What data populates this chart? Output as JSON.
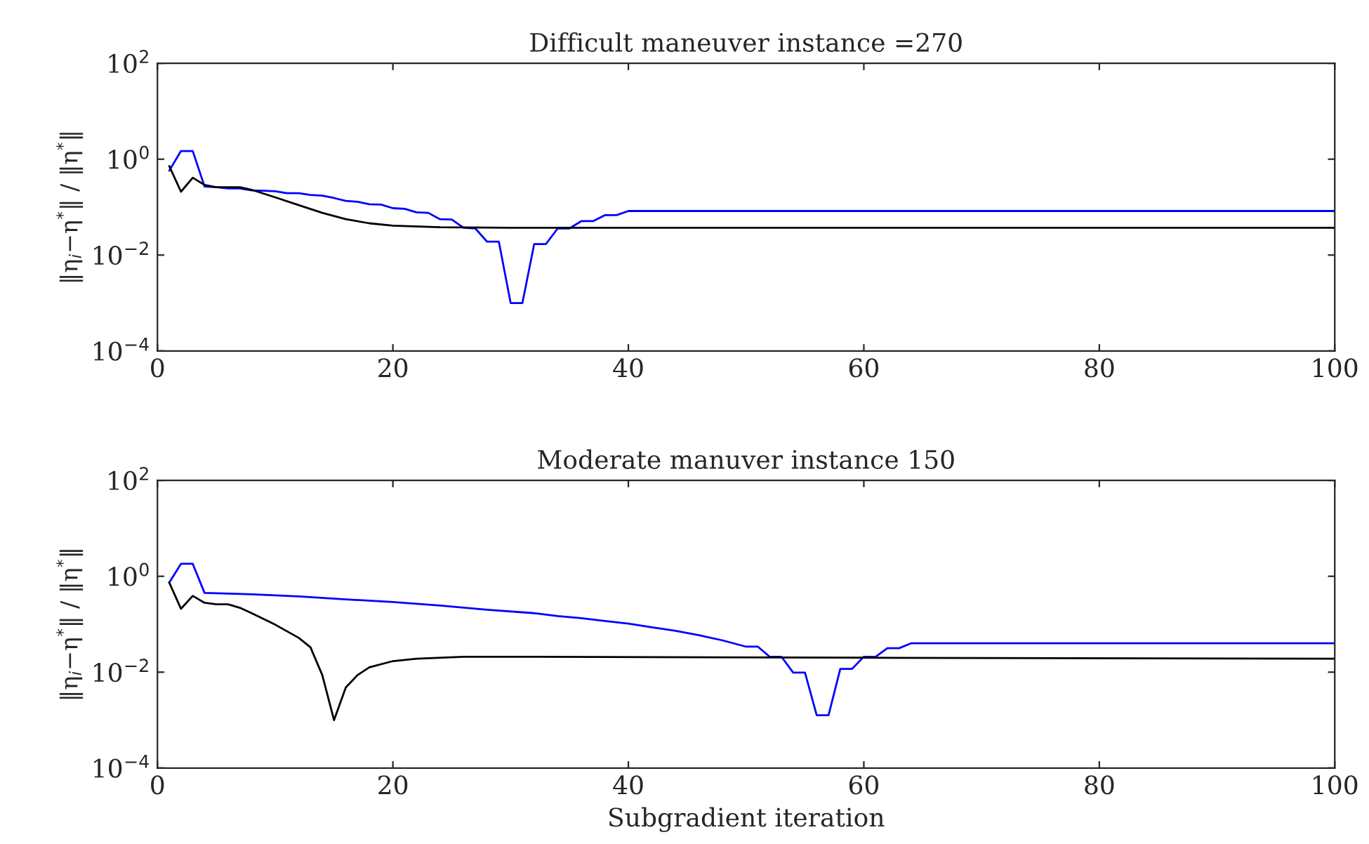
{
  "chart_data": [
    {
      "type": "line",
      "title": "Difficult maneuver instance =270",
      "ylabel": "‖η$_{i}$−η$^{*}$‖ / ‖η$^{*}$‖",
      "log": "y",
      "grid": false,
      "marker": "none",
      "line_style": "solid",
      "xlim": [
        0,
        100
      ],
      "xticks": [
        0,
        20,
        40,
        60,
        80,
        100
      ],
      "ylim": [
        0.0001,
        100
      ],
      "yticks": [
        {
          "value": 0.0001,
          "label": "10$^{−4}$"
        },
        {
          "value": 0.01,
          "label": "10$^{−2}$"
        },
        {
          "value": 1,
          "label": "10$^{0}$"
        },
        {
          "value": 100,
          "label": "10$^{2}$"
        }
      ],
      "series": [
        {
          "color": "#0000ff",
          "x": [
            1,
            2,
            3,
            4,
            5,
            6,
            7,
            8,
            9,
            10,
            11,
            12,
            13,
            14,
            15,
            16,
            17,
            18,
            19,
            20,
            21,
            22,
            23,
            24,
            25,
            26,
            27,
            28,
            29,
            30,
            31,
            32,
            33,
            34,
            35,
            36,
            37,
            38,
            39,
            40,
            100
          ],
          "values": [
            0.575,
            1.48,
            1.48,
            0.27,
            0.26,
            0.245,
            0.245,
            0.224,
            0.22,
            0.214,
            0.195,
            0.195,
            0.18,
            0.174,
            0.155,
            0.135,
            0.129,
            0.115,
            0.113,
            0.095,
            0.092,
            0.078,
            0.076,
            0.056,
            0.055,
            0.037,
            0.036,
            0.019,
            0.019,
            0.001,
            0.001,
            0.017,
            0.017,
            0.036,
            0.036,
            0.051,
            0.051,
            0.068,
            0.068,
            0.083,
            0.083
          ]
        },
        {
          "color": "#000000",
          "x": [
            1,
            2,
            3,
            4,
            5,
            6,
            7,
            8,
            10,
            12,
            14,
            16,
            18,
            20,
            24,
            30,
            100
          ],
          "values": [
            0.72,
            0.21,
            0.41,
            0.29,
            0.26,
            0.26,
            0.26,
            0.23,
            0.16,
            0.11,
            0.076,
            0.056,
            0.046,
            0.041,
            0.038,
            0.037,
            0.037
          ]
        }
      ]
    },
    {
      "type": "line",
      "title": "Moderate manuver instance 150",
      "xlabel": "Subgradient iteration",
      "ylabel": "‖η$_{i}$−η$^{*}$‖ / ‖η$^{*}$‖",
      "log": "y",
      "grid": false,
      "marker": "none",
      "line_style": "solid",
      "xlim": [
        0,
        100
      ],
      "xticks": [
        0,
        20,
        40,
        60,
        80,
        100
      ],
      "ylim": [
        0.0001,
        100
      ],
      "yticks": [
        {
          "value": 0.0001,
          "label": "10$^{−4}$"
        },
        {
          "value": 0.01,
          "label": "10$^{−2}$"
        },
        {
          "value": 1,
          "label": "10$^{0}$"
        },
        {
          "value": 100,
          "label": "10$^{2}$"
        }
      ],
      "series": [
        {
          "color": "#0000ff",
          "x": [
            1,
            2,
            3,
            4,
            8,
            12,
            16,
            20,
            24,
            28,
            32,
            34,
            36,
            38,
            40,
            42,
            44,
            46,
            48,
            50,
            51,
            52,
            53,
            54,
            55,
            56,
            57,
            58,
            59,
            60,
            61,
            62,
            63,
            64,
            100
          ],
          "values": [
            0.74,
            1.82,
            1.82,
            0.45,
            0.42,
            0.38,
            0.33,
            0.29,
            0.245,
            0.2,
            0.17,
            0.148,
            0.134,
            0.117,
            0.103,
            0.086,
            0.073,
            0.059,
            0.046,
            0.034,
            0.034,
            0.021,
            0.021,
            0.0098,
            0.0098,
            0.00126,
            0.00126,
            0.0117,
            0.0117,
            0.021,
            0.021,
            0.0316,
            0.0316,
            0.04,
            0.04
          ]
        },
        {
          "color": "#000000",
          "x": [
            1,
            2,
            3,
            4,
            5,
            6,
            7,
            8,
            10,
            12,
            13,
            14,
            15,
            16,
            17,
            18,
            20,
            22,
            26,
            30,
            60,
            100
          ],
          "values": [
            0.74,
            0.21,
            0.39,
            0.28,
            0.26,
            0.26,
            0.22,
            0.17,
            0.098,
            0.052,
            0.033,
            0.0087,
            0.001,
            0.0048,
            0.0087,
            0.0126,
            0.017,
            0.019,
            0.021,
            0.021,
            0.02,
            0.019
          ]
        }
      ]
    }
  ]
}
